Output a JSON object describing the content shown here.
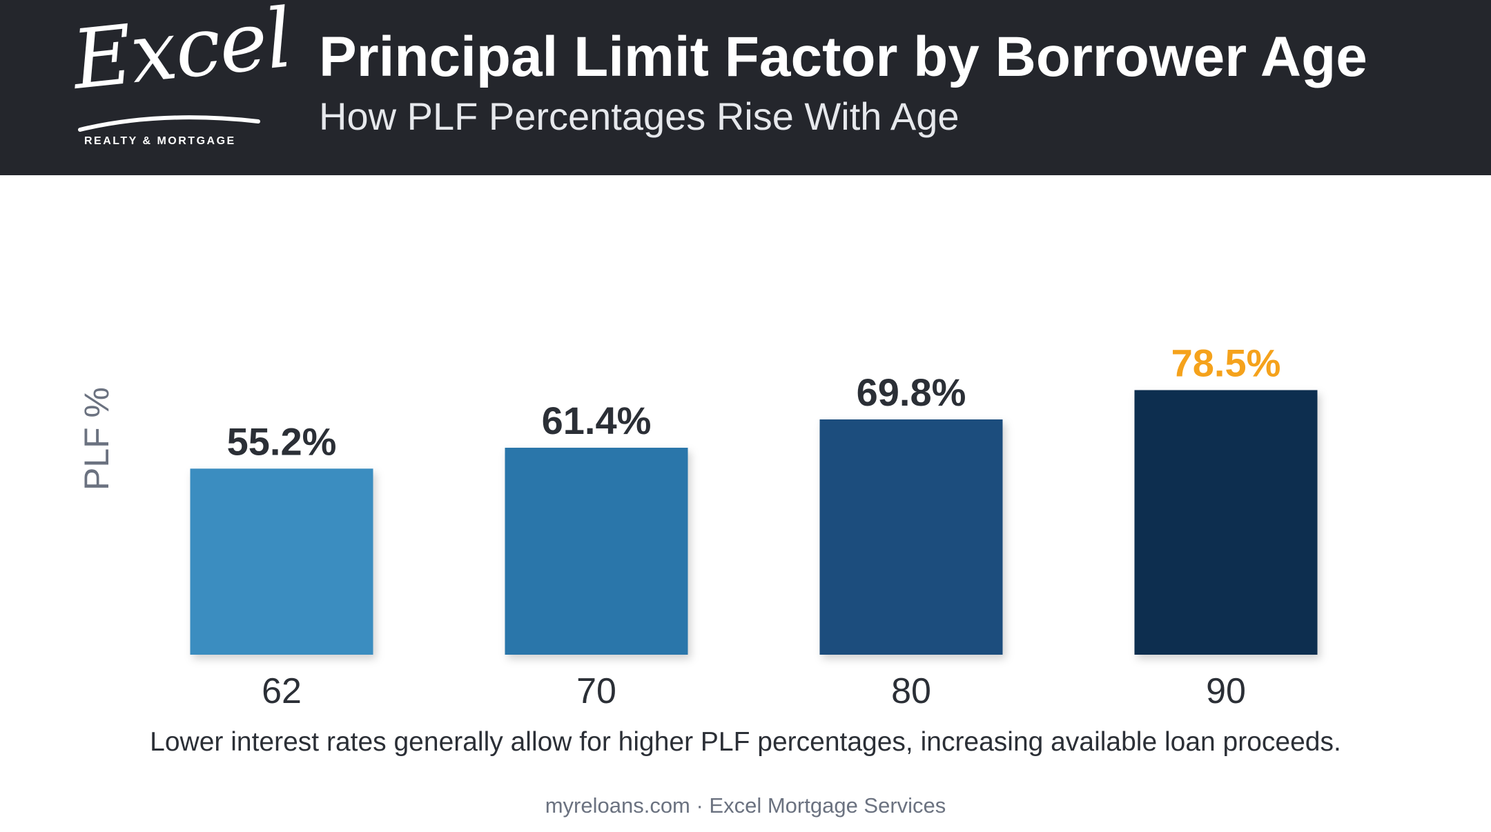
{
  "header": {
    "logo": {
      "wordmark": "Excel",
      "tagline": "REALTY & MORTGAGE"
    },
    "title": "Principal Limit Factor by Borrower Age",
    "subtitle": "How PLF Percentages Rise With Age"
  },
  "chart_data": {
    "type": "bar",
    "title": "Principal Limit Factor by Borrower Age",
    "subtitle": "How PLF Percentages Rise With Age",
    "xlabel": "",
    "ylabel": "PLF %",
    "categories": [
      "62",
      "70",
      "80",
      "90"
    ],
    "values": [
      55.2,
      61.4,
      69.8,
      78.5
    ],
    "data_labels": [
      "55.2%",
      "61.4%",
      "69.8%",
      "78.5%"
    ],
    "ylim": [
      0,
      100
    ],
    "grid": false,
    "legend": "none",
    "bar_colors": [
      "#3a8dc0",
      "#2b76aa",
      "#1c4e7d",
      "#112d4f"
    ],
    "label_colors": [
      "#2b2f36",
      "#2b2f36",
      "#2b2f36",
      "#f5a21b"
    ]
  },
  "footnote": "Lower interest rates generally allow for higher PLF percentages, increasing available loan proceeds.",
  "credit": "myreloans.com · Excel Mortgage Services",
  "colors": {
    "header_bg": "#24262c",
    "accent": "#f5a21b",
    "text_dark": "#2b2f36",
    "text_muted": "#6b7280"
  }
}
